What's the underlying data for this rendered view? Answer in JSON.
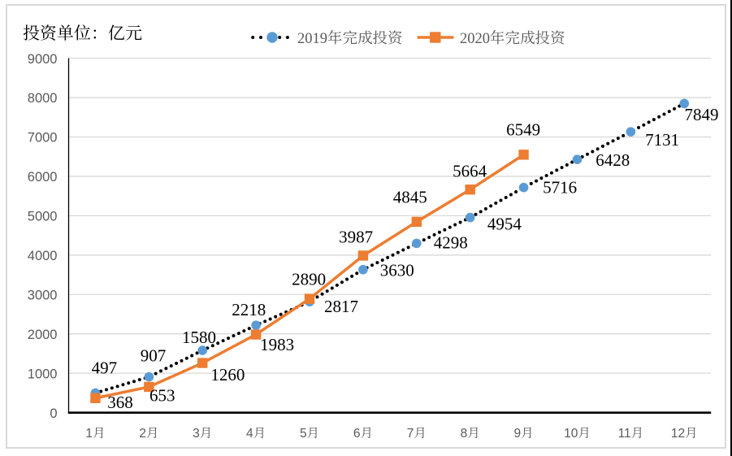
{
  "chart_data": {
    "type": "line",
    "title": "投资单位：亿元",
    "categories": [
      "1月",
      "2月",
      "3月",
      "4月",
      "5月",
      "6月",
      "7月",
      "8月",
      "9月",
      "10月",
      "11月",
      "12月"
    ],
    "series": [
      {
        "name": "2019年完成投资",
        "values": [
          497,
          907,
          1580,
          2218,
          2817,
          3630,
          4298,
          4954,
          5716,
          6428,
          7131,
          7849
        ],
        "line_style": "dotted",
        "line_color": "#000000",
        "marker": "circle",
        "marker_color": "#5B9BD5",
        "label_offsets": [
          [
            10.9,
            -31
          ],
          [
            5.1,
            -26.2
          ],
          [
            -4.2,
            -16.4
          ],
          [
            -8.9,
            -19.6
          ],
          [
            39,
            5.9
          ],
          [
            41.8,
            0.8
          ],
          [
            41.9,
            -1.1
          ],
          [
            42.2,
            7.6
          ],
          [
            44.6,
            -0.4
          ],
          [
            43.8,
            0.8
          ],
          [
            38.7,
            9.8
          ],
          [
            21.2,
            13.4
          ]
        ]
      },
      {
        "name": "2020年完成投资",
        "values": [
          368,
          653,
          1260,
          1983,
          2890,
          3987,
          4845,
          5664,
          6549
        ],
        "line_style": "solid",
        "line_color": "#ED7D31",
        "marker": "square",
        "marker_color": "#ED7D31",
        "label_offsets": [
          [
            30.6,
            4.9
          ],
          [
            16.4,
            10.2
          ],
          [
            31.2,
            14.1
          ],
          [
            26,
            12.5
          ],
          [
            -0.9,
            -24.1
          ],
          [
            -8.8,
            -23.3
          ],
          [
            -8,
            -30.8
          ],
          [
            -0.6,
            -22.7
          ],
          [
            -0.4,
            -30.8
          ]
        ]
      }
    ],
    "ylim": [
      0,
      9000
    ],
    "ytick_step": 1000,
    "yticks": [
      "0",
      "1000",
      "2000",
      "3000",
      "4000",
      "5000",
      "6000",
      "7000",
      "8000",
      "9000"
    ],
    "grid": "horizontal",
    "legend_position": "top",
    "colors": {
      "gridline": "#D9D9D9",
      "axis_line": "#000000",
      "tick_label": "#595959",
      "legend_text": "#595959",
      "data_label": "#000000",
      "chart_border": "#D9D9D9"
    }
  }
}
